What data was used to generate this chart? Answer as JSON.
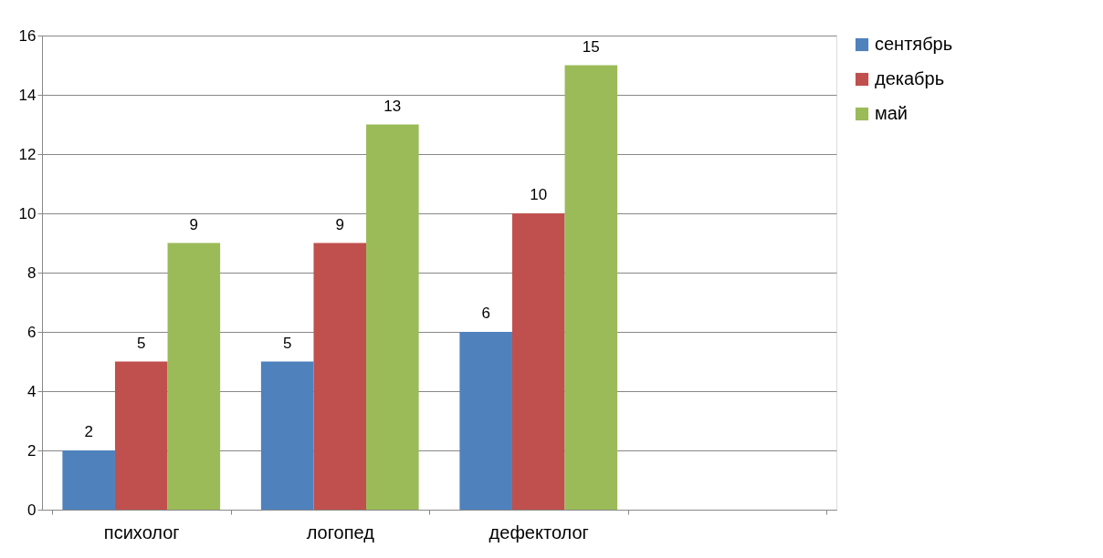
{
  "chart_data": {
    "type": "bar",
    "categories": [
      "психолог",
      "логопед",
      "дефектолог",
      null
    ],
    "series": [
      {
        "name": "сентябрь",
        "color": "#4f81bd",
        "values": [
          2,
          5,
          6,
          null
        ]
      },
      {
        "name": "декабрь",
        "color": "#c0504d",
        "values": [
          5,
          9,
          10,
          null
        ]
      },
      {
        "name": "май",
        "color": "#9bbb59",
        "values": [
          9,
          13,
          15,
          null
        ]
      }
    ],
    "ylim": [
      0,
      16
    ],
    "yticks": [
      0,
      2,
      4,
      6,
      8,
      10,
      12,
      14,
      16
    ],
    "grid": "y",
    "legend": "right",
    "data_labels": true
  }
}
